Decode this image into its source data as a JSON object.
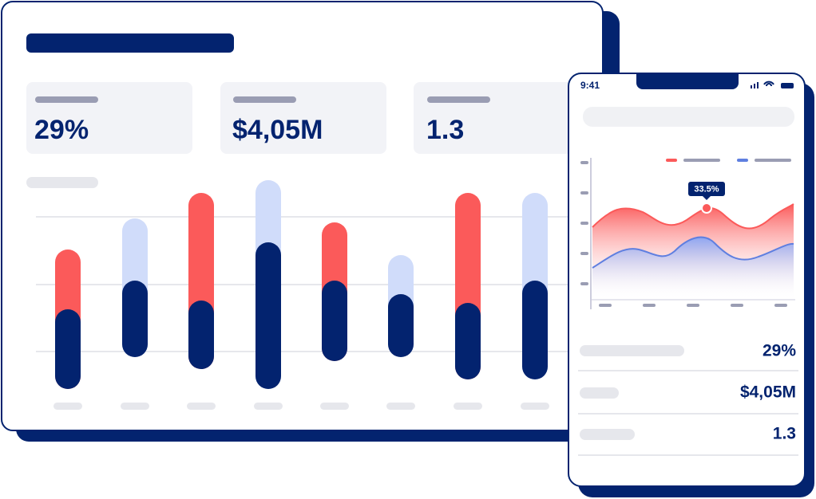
{
  "dashboard": {
    "kpis": [
      "29%",
      "$4,05M",
      "1.3"
    ]
  },
  "phone": {
    "time": "9:41",
    "tooltip": "33.5%",
    "rows": [
      "29%",
      "$4,05M",
      "1.3"
    ]
  }
}
